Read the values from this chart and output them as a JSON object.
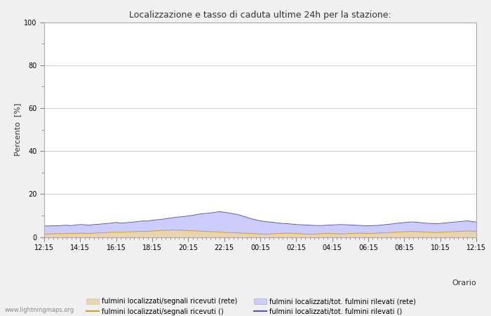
{
  "title": "Localizzazione e tasso di caduta ultime 24h per la stazione:",
  "ylabel": "Percento  [%]",
  "xlabel": "Orario",
  "xlabels": [
    "12:15",
    "14:15",
    "16:15",
    "18:15",
    "20:15",
    "22:15",
    "00:15",
    "02:15",
    "04:15",
    "06:15",
    "08:15",
    "10:15",
    "12:15"
  ],
  "ylim": [
    0,
    100
  ],
  "yticks": [
    0,
    20,
    40,
    60,
    80,
    100
  ],
  "yticks_minor": [
    10,
    30,
    50,
    70,
    90
  ],
  "fill_color_blue": "#ccccff",
  "fill_color_tan": "#e8d5b0",
  "line_color_orange": "#d4a020",
  "line_color_purple": "#5555bb",
  "background_color": "#f0f0f0",
  "plot_bg_color": "#ffffff",
  "grid_color": "#cccccc",
  "watermark": "www.lightningmaps.org",
  "legend_labels": [
    "fulmini localizzati/segnali ricevuti (rete)",
    "fulmini localizzati/segnali ricevuti ()",
    "fulmini localizzati/tot. fulmini rilevati (rete)",
    "fulmini localizzati/tot. fulmini rilevati ()"
  ],
  "n_points": 97,
  "blue_fill_data": [
    5.2,
    5.1,
    5.3,
    5.2,
    5.4,
    5.5,
    5.3,
    5.6,
    5.8,
    5.7,
    5.5,
    5.8,
    5.9,
    6.1,
    6.3,
    6.5,
    6.8,
    6.4,
    6.6,
    6.8,
    7.0,
    7.2,
    7.5,
    7.4,
    7.8,
    8.0,
    8.2,
    8.5,
    8.8,
    9.1,
    9.3,
    9.5,
    9.8,
    10.1,
    10.5,
    10.8,
    11.0,
    11.2,
    11.5,
    11.8,
    11.5,
    11.2,
    10.8,
    10.5,
    9.8,
    9.2,
    8.5,
    8.0,
    7.5,
    7.2,
    7.0,
    6.8,
    6.5,
    6.3,
    6.2,
    6.0,
    5.8,
    5.7,
    5.6,
    5.5,
    5.4,
    5.3,
    5.4,
    5.5,
    5.6,
    5.7,
    5.8,
    5.7,
    5.6,
    5.5,
    5.4,
    5.3,
    5.2,
    5.3,
    5.4,
    5.6,
    5.8,
    6.0,
    6.3,
    6.5,
    6.7,
    6.9,
    7.0,
    6.8,
    6.6,
    6.4,
    6.3,
    6.2,
    6.3,
    6.5,
    6.7,
    6.9,
    7.1,
    7.3,
    7.5,
    7.2,
    7.0
  ],
  "tan_fill_data": [
    1.5,
    1.4,
    1.5,
    1.6,
    1.5,
    1.6,
    1.7,
    1.6,
    1.8,
    1.7,
    1.6,
    1.8,
    1.9,
    2.0,
    2.1,
    2.2,
    2.3,
    2.2,
    2.3,
    2.4,
    2.5,
    2.6,
    2.7,
    2.6,
    2.8,
    2.9,
    3.0,
    3.1,
    3.2,
    3.3,
    3.2,
    3.1,
    3.0,
    2.9,
    2.8,
    2.7,
    2.6,
    2.5,
    2.4,
    2.3,
    2.2,
    2.1,
    2.0,
    1.9,
    1.8,
    1.7,
    1.6,
    1.5,
    1.4,
    1.3,
    1.4,
    1.5,
    1.6,
    1.7,
    1.8,
    1.7,
    1.6,
    1.5,
    1.4,
    1.3,
    1.4,
    1.5,
    1.6,
    1.7,
    1.6,
    1.5,
    1.4,
    1.5,
    1.6,
    1.7,
    1.8,
    1.7,
    1.6,
    1.7,
    1.8,
    1.9,
    2.0,
    2.1,
    2.2,
    2.3,
    2.4,
    2.5,
    2.6,
    2.5,
    2.4,
    2.3,
    2.2,
    2.1,
    2.2,
    2.3,
    2.4,
    2.5,
    2.6,
    2.7,
    2.8,
    2.7,
    2.6
  ]
}
